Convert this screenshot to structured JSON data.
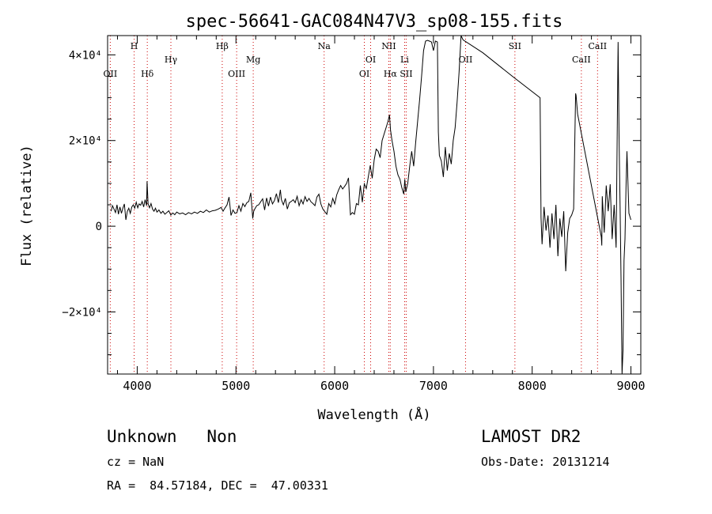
{
  "chart_data": {
    "type": "line",
    "title": "spec-56641-GAC084N47V3_sp08-155.fits",
    "xlabel": "Wavelength (Å)",
    "ylabel": "Flux (relative)",
    "xlim": [
      3700,
      9100
    ],
    "ylim": [
      -34500,
      44500
    ],
    "xticks": [
      {
        "value": 4000,
        "label": "4000"
      },
      {
        "value": 5000,
        "label": "5000"
      },
      {
        "value": 6000,
        "label": "6000"
      },
      {
        "value": 7000,
        "label": "7000"
      },
      {
        "value": 8000,
        "label": "8000"
      },
      {
        "value": 9000,
        "label": "9000"
      }
    ],
    "yticks": [
      {
        "value": -20000,
        "label": "−2×10⁴"
      },
      {
        "value": 0,
        "label": "0"
      },
      {
        "value": 20000,
        "label": "2×10⁴"
      },
      {
        "value": 40000,
        "label": "4×10⁴"
      }
    ],
    "grid": false,
    "line_colors": {
      "spectrum": "#000000",
      "feature_marker": "#cc0000"
    },
    "features": [
      {
        "name": "OII",
        "wavelength": 3727,
        "row": 3
      },
      {
        "name": "H",
        "wavelength": 3969,
        "row": 1
      },
      {
        "name": "Hδ",
        "wavelength": 4102,
        "row": 3
      },
      {
        "name": "Hγ",
        "wavelength": 4341,
        "row": 2
      },
      {
        "name": "Hβ",
        "wavelength": 4861,
        "row": 1
      },
      {
        "name": "OIII",
        "wavelength": 5007,
        "row": 3
      },
      {
        "name": "Mg",
        "wavelength": 5175,
        "row": 2
      },
      {
        "name": "Na",
        "wavelength": 5893,
        "row": 1
      },
      {
        "name": "OI",
        "wavelength": 6300,
        "row": 3
      },
      {
        "name": "OI",
        "wavelength": 6364,
        "row": 2
      },
      {
        "name": "NII",
        "wavelength": 6548,
        "row": 1
      },
      {
        "name": "Hα",
        "wavelength": 6563,
        "row": 3
      },
      {
        "name": "Li",
        "wavelength": 6708,
        "row": 2
      },
      {
        "name": "SII",
        "wavelength": 6724,
        "row": 3
      },
      {
        "name": "OII",
        "wavelength": 7325,
        "row": 2
      },
      {
        "name": "SII",
        "wavelength": 7825,
        "row": 1
      },
      {
        "name": "CaII",
        "wavelength": 8498,
        "row": 2
      },
      {
        "name": "CaII",
        "wavelength": 8662,
        "row": 1
      }
    ],
    "series": [
      {
        "x": [
          3735,
          3750,
          3765,
          3780,
          3795,
          3810,
          3825,
          3840,
          3855,
          3870,
          3885,
          3900,
          3915,
          3930,
          3945,
          3960,
          3975,
          3990,
          4005,
          4020,
          4035,
          4050,
          4065,
          4080,
          4095,
          4100,
          4110,
          4125,
          4140,
          4155,
          4170,
          4185,
          4200,
          4220,
          4240,
          4260,
          4280,
          4300,
          4320,
          4340,
          4360,
          4380,
          4400,
          4430,
          4460,
          4490,
          4520,
          4550,
          4580,
          4610,
          4640,
          4670,
          4700,
          4730,
          4760,
          4790,
          4820,
          4850,
          4870,
          4890,
          4910,
          4930,
          4950,
          4970,
          4990,
          5010,
          5030,
          5050,
          5070,
          5090,
          5110,
          5130,
          5150,
          5170,
          5180,
          5190,
          5210,
          5230,
          5250,
          5270,
          5290,
          5310,
          5330,
          5350,
          5370,
          5390,
          5410,
          5430,
          5450,
          5460,
          5480,
          5500,
          5520,
          5540,
          5560,
          5580,
          5600,
          5620,
          5640,
          5660,
          5680,
          5700,
          5720,
          5740,
          5760,
          5780,
          5800,
          5820,
          5840,
          5860,
          5880,
          5900,
          5920,
          5940,
          5960,
          5980,
          6000,
          6020,
          6040,
          6060,
          6080,
          6100,
          6120,
          6140,
          6150,
          6160,
          6180,
          6200,
          6220,
          6240,
          6260,
          6280,
          6300,
          6320,
          6340,
          6360,
          6380,
          6400,
          6420,
          6440,
          6460,
          6480,
          6500,
          6520,
          6540,
          6555,
          6565,
          6580,
          6600,
          6620,
          6640,
          6660,
          6680,
          6700,
          6710,
          6720,
          6740,
          6760,
          6780,
          6800,
          6820,
          6840,
          6860,
          6880,
          6900,
          6920,
          6940,
          6960,
          6980,
          7000,
          7020,
          7040,
          7050,
          7060,
          7080,
          7100,
          7120,
          7140,
          7160,
          7180,
          7200,
          7220,
          7240,
          7260,
          7280,
          7300,
          7500,
          7800,
          8080,
          8090,
          8100,
          8120,
          8140,
          8160,
          8180,
          8200,
          8220,
          8240,
          8260,
          8280,
          8300,
          8320,
          8340,
          8360,
          8380,
          8400,
          8420,
          8440,
          8445,
          8460,
          8700,
          8705,
          8710,
          8730,
          8750,
          8770,
          8790,
          8810,
          8830,
          8850,
          8870,
          8880,
          8890,
          8900,
          8910,
          8920,
          8930,
          8940,
          8950,
          8960,
          8980,
          9000
        ],
        "y": [
          3500,
          4800,
          4000,
          3200,
          5000,
          2800,
          4500,
          3000,
          4200,
          5200,
          1500,
          3500,
          4200,
          3000,
          4500,
          5000,
          4200,
          5600,
          4300,
          5200,
          4900,
          5800,
          4500,
          6200,
          4800,
          10500,
          5200,
          4300,
          5300,
          4000,
          3500,
          4200,
          3300,
          3800,
          3000,
          3500,
          2800,
          3200,
          3600,
          2600,
          3100,
          2700,
          3300,
          2900,
          3100,
          2700,
          3200,
          2900,
          3300,
          3000,
          3500,
          3200,
          3800,
          3300,
          3600,
          3700,
          4000,
          4400,
          3500,
          4300,
          5000,
          6800,
          2500,
          3800,
          3000,
          3200,
          4800,
          3500,
          5300,
          4600,
          5500,
          5800,
          7800,
          1800,
          3500,
          4000,
          4800,
          5000,
          5700,
          6400,
          3800,
          6600,
          4700,
          6800,
          5200,
          6000,
          7600,
          5500,
          8500,
          6200,
          5000,
          6500,
          4000,
          5500,
          5800,
          6200,
          5500,
          7000,
          4800,
          6200,
          5200,
          6900,
          5800,
          6500,
          5700,
          5300,
          4800,
          6800,
          7500,
          5200,
          4000,
          3400,
          2800,
          5300,
          4500,
          6500,
          5200,
          7300,
          8500,
          9500,
          8700,
          9300,
          10000,
          11300,
          6500,
          2700,
          3200,
          2800,
          5300,
          5000,
          9500,
          5600,
          9900,
          8800,
          11500,
          14200,
          11200,
          15500,
          18000,
          17500,
          16000,
          20000,
          21500,
          23000,
          24500,
          26000,
          22500,
          20000,
          17500,
          14000,
          12000,
          11000,
          9000,
          7500,
          11000,
          8000,
          10000,
          14000,
          17500,
          14000,
          19500,
          24500,
          29500,
          35000,
          41000,
          43200,
          43400,
          43200,
          43000,
          41000,
          43200,
          43000,
          22000,
          16500,
          15200,
          11500,
          18500,
          13000,
          17000,
          14500,
          20000,
          23000,
          29000,
          36000,
          44500,
          43500,
          40500,
          35000,
          30000,
          2000,
          -4200,
          4500,
          -1000,
          2500,
          -5000,
          3000,
          -3000,
          5000,
          -7000,
          1800,
          -2500,
          3500,
          -10500,
          -1500,
          1800,
          2600,
          4000,
          31000,
          30500,
          26200,
          -2500,
          -4500,
          7000,
          -1500,
          9500,
          3500,
          9800,
          -3000,
          5000,
          -5000,
          43000,
          21000,
          5000,
          -12000,
          -34500,
          -29000,
          -8000,
          -3000,
          9000,
          17500,
          3000,
          1500
        ]
      }
    ]
  },
  "info": {
    "class_line": "Unknown   Non",
    "survey": "LAMOST DR2",
    "cz": "cz = NaN",
    "obs_date": "Obs-Date: 20131214",
    "coords": "RA =  84.57184, DEC =  47.00331"
  }
}
